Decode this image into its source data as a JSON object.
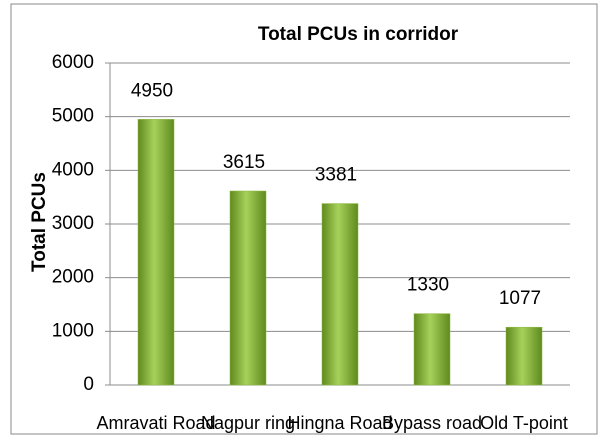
{
  "chart_data": {
    "type": "bar",
    "title": "Total PCUs in corridor",
    "y_label": "Total PCUs",
    "categories": [
      "Amravati Road",
      "Nagpur ring",
      "Hingna Road",
      "Bypass road",
      "Old T-point"
    ],
    "values": [
      4950,
      3615,
      3381,
      1330,
      1077
    ],
    "color": "#8db83e",
    "ylim": [
      0,
      6000
    ],
    "yticks": [
      0,
      1000,
      2000,
      3000,
      4000,
      5000,
      6000
    ],
    "grid": true
  }
}
